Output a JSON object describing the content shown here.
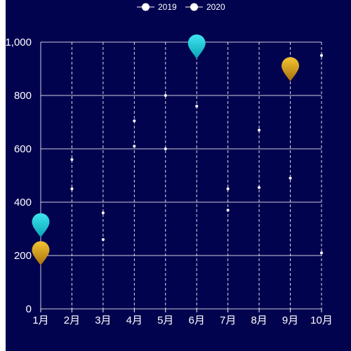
{
  "chart_data": {
    "type": "scatter",
    "categories": [
      "1月",
      "2月",
      "3月",
      "4月",
      "5月",
      "6月",
      "7月",
      "8月",
      "9月",
      "10月"
    ],
    "series": [
      {
        "name": "2019",
        "values": [
          null,
          560,
          360,
          705,
          800,
          760,
          450,
          670,
          490,
          950
        ]
      },
      {
        "name": "2020",
        "values": [
          null,
          450,
          260,
          610,
          600,
          null,
          370,
          455,
          null,
          210
        ]
      }
    ],
    "pins": [
      {
        "category": "1月",
        "value": 310,
        "color": "cyan"
      },
      {
        "category": "1月",
        "value": 205,
        "color": "gold"
      },
      {
        "category": "6月",
        "value": 980,
        "color": "cyan"
      },
      {
        "category": "9月",
        "value": 895,
        "color": "gold"
      }
    ],
    "y_ticks": [
      "0",
      "200",
      "400",
      "600",
      "800",
      "1,000"
    ],
    "ylim": [
      0,
      1000
    ],
    "title": "",
    "xlabel": "",
    "ylabel": "",
    "legend_position": "top-center",
    "grid": true,
    "colors": {
      "background": "#02034f",
      "grid": "#ffffff",
      "marker": "#ffffff",
      "pin_cyan_top": "#3ee6f0",
      "pin_cyan_bottom": "#0aa3b5",
      "pin_gold_top": "#f2c531",
      "pin_gold_bottom": "#a9700f"
    }
  }
}
